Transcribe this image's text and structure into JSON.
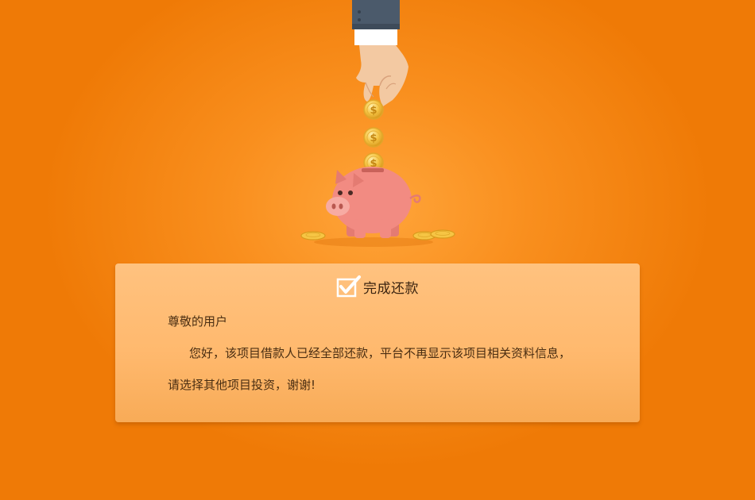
{
  "dialog": {
    "title": "完成还款",
    "greeting": "尊敬的用户",
    "message_line1": "您好，该项目借款人已经全部还款，平台不再显示该项目相关资料信息，",
    "message_line2": "请选择其他项目投资，谢谢!"
  },
  "colors": {
    "background": "#f98f1e",
    "card": "#ffbc74",
    "pig": "#f28b82",
    "coin": "#f6c544",
    "sleeve": "#4b5a6b"
  },
  "icons": [
    "hand-icon",
    "coin-icon",
    "piggy-bank-icon",
    "checkbox-checked-icon"
  ]
}
